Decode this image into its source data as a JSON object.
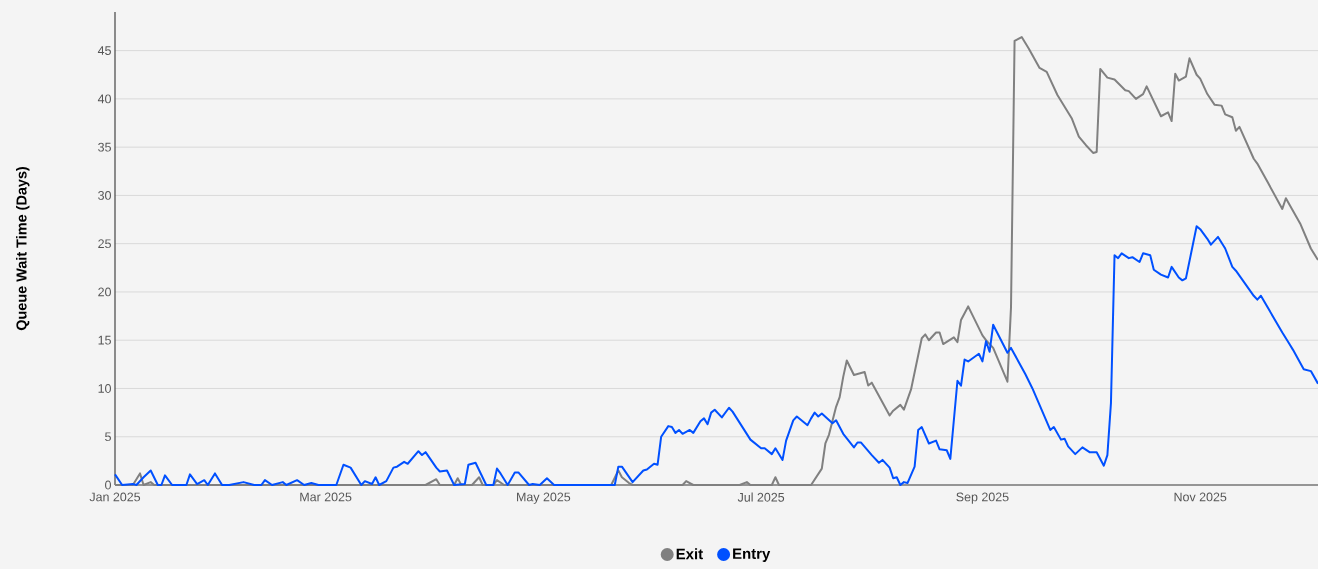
{
  "chart_data": {
    "type": "line",
    "ylabel": "Queue Wait Time (Days)",
    "xlim": [
      "2025-01-01",
      "2025-12-04"
    ],
    "ylim": [
      0,
      49
    ],
    "xticks": [
      {
        "value": "2025-01-01",
        "label": "Jan 2025"
      },
      {
        "value": "2025-03-01",
        "label": "Mar 2025"
      },
      {
        "value": "2025-05-01",
        "label": "May 2025"
      },
      {
        "value": "2025-07-01",
        "label": "Jul 2025"
      },
      {
        "value": "2025-09-01",
        "label": "Sep 2025"
      },
      {
        "value": "2025-11-01",
        "label": "Nov 2025"
      }
    ],
    "yticks": [
      0,
      5,
      10,
      15,
      20,
      25,
      30,
      35,
      40,
      45
    ],
    "grid": "y",
    "legend": "bottom",
    "series": [
      {
        "name": "Exit",
        "color": "#808080",
        "x": [
          "2025-01-01",
          "2025-01-06",
          "2025-01-08",
          "2025-01-09",
          "2025-01-11",
          "2025-01-12",
          "2025-03-29",
          "2025-04-01",
          "2025-04-02",
          "2025-04-06",
          "2025-04-07",
          "2025-04-08",
          "2025-04-11",
          "2025-04-13",
          "2025-04-14",
          "2025-04-17",
          "2025-04-18",
          "2025-04-20",
          "2025-05-20",
          "2025-05-22",
          "2025-05-23",
          "2025-05-25",
          "2025-05-26",
          "2025-06-09",
          "2025-06-10",
          "2025-06-12",
          "2025-06-25",
          "2025-06-27",
          "2025-06-28",
          "2025-07-04",
          "2025-07-05",
          "2025-07-06",
          "2025-07-15",
          "2025-07-18",
          "2025-07-19",
          "2025-07-20",
          "2025-07-22",
          "2025-07-23",
          "2025-07-24",
          "2025-07-25",
          "2025-07-27",
          "2025-07-30",
          "2025-07-31",
          "2025-08-01",
          "2025-08-06",
          "2025-08-07",
          "2025-08-09",
          "2025-08-10",
          "2025-08-12",
          "2025-08-15",
          "2025-08-16",
          "2025-08-17",
          "2025-08-19",
          "2025-08-20",
          "2025-08-21",
          "2025-08-24",
          "2025-08-25",
          "2025-08-26",
          "2025-08-28",
          "2025-09-01",
          "2025-09-02",
          "2025-09-04",
          "2025-09-08",
          "2025-09-09",
          "2025-09-10",
          "2025-09-12",
          "2025-09-14",
          "2025-09-17",
          "2025-09-19",
          "2025-09-22",
          "2025-09-26",
          "2025-09-28",
          "2025-09-30",
          "2025-10-02",
          "2025-10-03",
          "2025-10-04",
          "2025-10-06",
          "2025-10-08",
          "2025-10-11",
          "2025-10-12",
          "2025-10-14",
          "2025-10-16",
          "2025-10-17",
          "2025-10-21",
          "2025-10-23",
          "2025-10-24",
          "2025-10-25",
          "2025-10-26",
          "2025-10-28",
          "2025-10-29",
          "2025-10-31",
          "2025-11-01",
          "2025-11-03",
          "2025-11-05",
          "2025-11-07",
          "2025-11-08",
          "2025-11-10",
          "2025-11-11",
          "2025-11-12",
          "2025-11-16",
          "2025-11-17",
          "2025-11-20",
          "2025-11-24",
          "2025-11-25",
          "2025-11-29",
          "2025-12-02",
          "2025-12-04"
        ],
        "values": [
          0,
          0,
          1.2,
          0,
          0.3,
          0,
          0,
          0.6,
          0,
          0,
          0.7,
          0,
          0,
          0.8,
          0,
          0,
          0.5,
          0,
          0,
          1.5,
          0.8,
          0.2,
          0,
          0,
          0.4,
          0,
          0,
          0.3,
          0,
          0,
          0.8,
          0,
          0,
          1.7,
          4.3,
          5.2,
          8.1,
          9.1,
          11.2,
          12.9,
          11.4,
          11.7,
          10.3,
          10.6,
          7.2,
          7.7,
          8.3,
          7.8,
          9.9,
          15.2,
          15.6,
          15.0,
          15.8,
          15.8,
          14.6,
          15.3,
          14.8,
          17.1,
          18.5,
          15.5,
          15.0,
          14.2,
          10.7,
          18.4,
          46.0,
          46.4,
          45.2,
          43.2,
          42.8,
          40.4,
          38.0,
          36.1,
          35.2,
          34.4,
          34.5,
          43.1,
          42.2,
          42.0,
          40.9,
          40.8,
          40.0,
          40.5,
          41.3,
          38.2,
          38.6,
          37.7,
          42.6,
          41.9,
          42.3,
          44.2,
          42.5,
          42.1,
          40.5,
          39.4,
          39.3,
          38.4,
          38.1,
          36.7,
          37.1,
          33.8,
          33.3,
          31.3,
          28.6,
          29.7,
          27.1,
          24.5,
          23.3
        ]
      },
      {
        "name": "Entry",
        "color": "#0050ff",
        "x": [
          "2025-01-01",
          "2025-01-03",
          "2025-01-06",
          "2025-01-07",
          "2025-01-09",
          "2025-01-11",
          "2025-01-13",
          "2025-01-14",
          "2025-01-15",
          "2025-01-17",
          "2025-01-21",
          "2025-01-22",
          "2025-01-24",
          "2025-01-26",
          "2025-01-27",
          "2025-01-29",
          "2025-01-31",
          "2025-02-02",
          "2025-02-06",
          "2025-02-09",
          "2025-02-11",
          "2025-02-12",
          "2025-02-14",
          "2025-02-17",
          "2025-02-18",
          "2025-02-21",
          "2025-02-23",
          "2025-02-25",
          "2025-02-27",
          "2025-03-04",
          "2025-03-06",
          "2025-03-08",
          "2025-03-11",
          "2025-03-12",
          "2025-03-14",
          "2025-03-15",
          "2025-03-16",
          "2025-03-18",
          "2025-03-20",
          "2025-03-21",
          "2025-03-23",
          "2025-03-24",
          "2025-03-27",
          "2025-03-28",
          "2025-03-29",
          "2025-04-01",
          "2025-04-02",
          "2025-04-04",
          "2025-04-06",
          "2025-04-09",
          "2025-04-10",
          "2025-04-12",
          "2025-04-15",
          "2025-04-17",
          "2025-04-18",
          "2025-04-19",
          "2025-04-21",
          "2025-04-23",
          "2025-04-24",
          "2025-04-27",
          "2025-04-28",
          "2025-04-30",
          "2025-05-02",
          "2025-05-04",
          "2025-05-21",
          "2025-05-22",
          "2025-05-23",
          "2025-05-26",
          "2025-05-29",
          "2025-05-30",
          "2025-06-01",
          "2025-06-02",
          "2025-06-03",
          "2025-06-05",
          "2025-06-06",
          "2025-06-07",
          "2025-06-08",
          "2025-06-09",
          "2025-06-11",
          "2025-06-12",
          "2025-06-14",
          "2025-06-15",
          "2025-06-16",
          "2025-06-17",
          "2025-06-18",
          "2025-06-20",
          "2025-06-22",
          "2025-06-23",
          "2025-06-28",
          "2025-07-01",
          "2025-07-02",
          "2025-07-04",
          "2025-07-05",
          "2025-07-07",
          "2025-07-08",
          "2025-07-10",
          "2025-07-11",
          "2025-07-14",
          "2025-07-15",
          "2025-07-16",
          "2025-07-17",
          "2025-07-18",
          "2025-07-21",
          "2025-07-22",
          "2025-07-24",
          "2025-07-27",
          "2025-07-28",
          "2025-07-29",
          "2025-08-01",
          "2025-08-03",
          "2025-08-04",
          "2025-08-06",
          "2025-08-07",
          "2025-08-08",
          "2025-08-09",
          "2025-08-10",
          "2025-08-11",
          "2025-08-13",
          "2025-08-14",
          "2025-08-15",
          "2025-08-17",
          "2025-08-19",
          "2025-08-20",
          "2025-08-22",
          "2025-08-23",
          "2025-08-25",
          "2025-08-26",
          "2025-08-27",
          "2025-08-28",
          "2025-08-31",
          "2025-09-01",
          "2025-09-02",
          "2025-09-03",
          "2025-09-04",
          "2025-09-08",
          "2025-09-09",
          "2025-09-13",
          "2025-09-15",
          "2025-09-20",
          "2025-09-21",
          "2025-09-23",
          "2025-09-24",
          "2025-09-25",
          "2025-09-27",
          "2025-09-29",
          "2025-10-01",
          "2025-10-03",
          "2025-10-05",
          "2025-10-06",
          "2025-10-07",
          "2025-10-08",
          "2025-10-09",
          "2025-10-10",
          "2025-10-12",
          "2025-10-13",
          "2025-10-15",
          "2025-10-16",
          "2025-10-18",
          "2025-10-19",
          "2025-10-21",
          "2025-10-23",
          "2025-10-24",
          "2025-10-26",
          "2025-10-27",
          "2025-10-28",
          "2025-10-31",
          "2025-11-01",
          "2025-11-03",
          "2025-11-04",
          "2025-11-06",
          "2025-11-08",
          "2025-11-10",
          "2025-11-11",
          "2025-11-16",
          "2025-11-17",
          "2025-11-18",
          "2025-11-24",
          "2025-11-26",
          "2025-11-27",
          "2025-11-30",
          "2025-12-02",
          "2025-12-04"
        ],
        "values": [
          1.1,
          0,
          0.1,
          0,
          0.8,
          1.5,
          0,
          0,
          1.0,
          0,
          0,
          1.1,
          0.1,
          0.5,
          0,
          1.2,
          0,
          0,
          0.3,
          0,
          0,
          0.5,
          0,
          0.3,
          0,
          0.5,
          0,
          0.2,
          0,
          0,
          2.1,
          1.8,
          0,
          0.4,
          0.1,
          0.8,
          0,
          0.4,
          1.8,
          1.9,
          2.4,
          2.2,
          3.5,
          3.1,
          3.4,
          1.8,
          1.4,
          1.5,
          0,
          0.1,
          2.1,
          2.3,
          0,
          0,
          1.7,
          1.2,
          0,
          1.3,
          1.3,
          0,
          0.1,
          0,
          0.7,
          0,
          0,
          1.9,
          1.9,
          0.3,
          1.5,
          1.6,
          2.2,
          2.1,
          5.0,
          6.1,
          6.0,
          5.4,
          5.7,
          5.3,
          5.7,
          5.4,
          6.6,
          6.9,
          6.3,
          7.5,
          7.8,
          7.0,
          8.0,
          7.6,
          4.7,
          3.8,
          3.8,
          3.2,
          3.8,
          2.6,
          4.6,
          6.7,
          7.1,
          6.2,
          6.9,
          7.5,
          7.1,
          7.4,
          6.4,
          6.7,
          5.3,
          3.9,
          4.4,
          4.4,
          3.1,
          2.3,
          2.6,
          1.8,
          0.7,
          0.8,
          0,
          0.3,
          0.2,
          1.9,
          5.7,
          6.0,
          4.3,
          4.6,
          3.7,
          3.6,
          2.7,
          10.8,
          10.3,
          13.0,
          12.8,
          13.6,
          12.8,
          14.9,
          13.8,
          16.6,
          13.7,
          14.2,
          11.5,
          10.0,
          5.7,
          6.0,
          4.7,
          4.8,
          4.0,
          3.2,
          3.9,
          3.4,
          3.4,
          2.0,
          3.1,
          8.5,
          23.8,
          23.5,
          24.0,
          23.5,
          23.6,
          23.1,
          24.0,
          23.8,
          22.3,
          21.8,
          21.5,
          22.6,
          21.5,
          21.2,
          21.4,
          26.8,
          26.5,
          25.5,
          24.9,
          25.7,
          24.5,
          22.6,
          22.2,
          19.6,
          19.2,
          19.6,
          15.8,
          14.6,
          14.0,
          12.0,
          11.8,
          10.5
        ]
      }
    ]
  }
}
